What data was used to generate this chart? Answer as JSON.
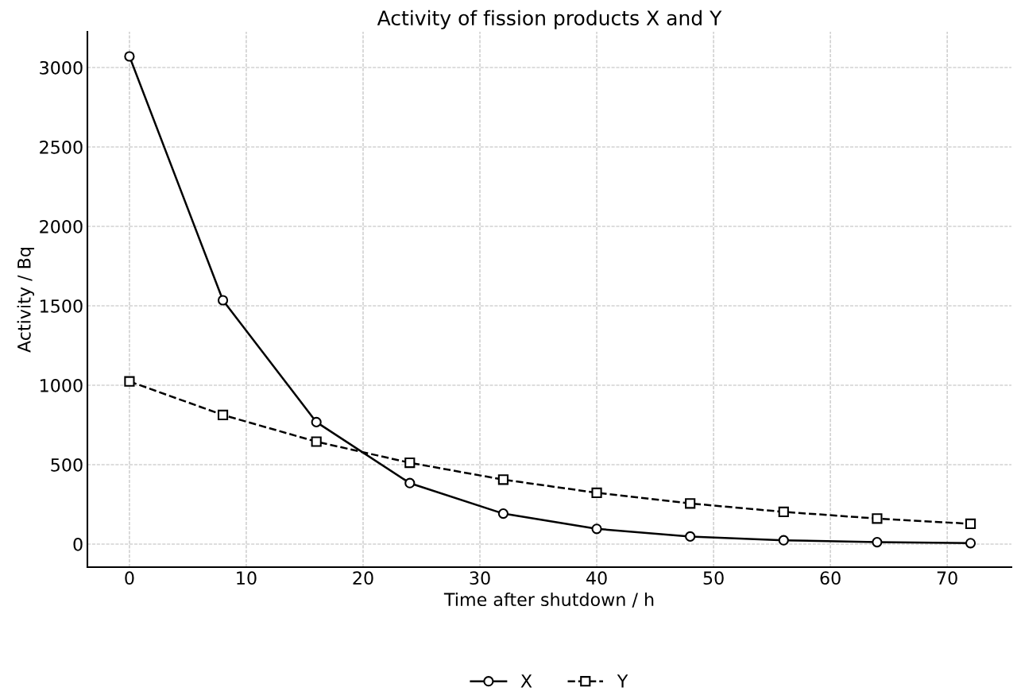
{
  "chart_data": {
    "type": "line",
    "title": "Activity of fission products X and Y",
    "xlabel": "Time after shutdown / h",
    "ylabel": "Activity / Bq",
    "x": [
      0,
      8,
      16,
      24,
      32,
      40,
      48,
      56,
      64,
      72
    ],
    "series": [
      {
        "name": "X",
        "color": "#000000",
        "values": [
          3070,
          1535,
          768,
          384,
          192,
          96,
          48,
          24,
          12,
          6
        ],
        "marker": "circle",
        "line_style": "solid"
      },
      {
        "name": "Y",
        "color": "#000000",
        "values": [
          1024,
          813,
          645,
          512,
          406,
          323,
          256,
          203,
          161,
          128
        ],
        "marker": "square",
        "line_style": "dashed"
      }
    ],
    "xlim": [
      -3.6,
      75.5
    ],
    "ylim": [
      -145,
      3225
    ],
    "xticks": [
      0,
      10,
      20,
      30,
      40,
      50,
      60,
      70
    ],
    "yticks": [
      0,
      500,
      1000,
      1500,
      2000,
      2500,
      3000
    ],
    "grid": true,
    "legend": "bottom"
  }
}
